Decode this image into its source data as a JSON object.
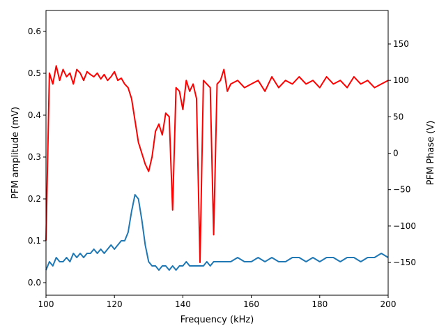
{
  "chart_data": {
    "type": "line",
    "xlabel": "Frequency (kHz)",
    "ylabel": "PFM amplitude (mV)",
    "y2label": "PFM Phase (V)",
    "xlim": [
      100,
      200
    ],
    "ylim": [
      -0.03,
      0.65
    ],
    "y2lim": [
      -195,
      196
    ],
    "grid": false,
    "xticks": [
      100,
      120,
      140,
      160,
      180,
      200
    ],
    "yticks": [
      0.0,
      0.1,
      0.2,
      0.3,
      0.4,
      0.5,
      0.6
    ],
    "y2ticks": [
      -150,
      -100,
      -50,
      0,
      50,
      100,
      150
    ],
    "xtick_labels": [
      "100",
      "120",
      "140",
      "160",
      "180",
      "200"
    ],
    "ytick_labels": [
      "0.0",
      "0.1",
      "0.2",
      "0.3",
      "0.4",
      "0.5",
      "0.6"
    ],
    "y2tick_labels": [
      "−150",
      "−100",
      "−50",
      "0",
      "50",
      "100",
      "150"
    ],
    "series": [
      {
        "axis": "left",
        "color": "#1f77b4",
        "x": [
          100,
          101,
          102,
          103,
          104,
          105,
          106,
          107,
          108,
          109,
          110,
          111,
          112,
          113,
          114,
          115,
          116,
          117,
          118,
          119,
          120,
          121,
          122,
          123,
          124,
          125,
          126,
          127,
          128,
          129,
          130,
          131,
          132,
          133,
          134,
          135,
          136,
          137,
          138,
          139,
          140,
          141,
          142,
          143,
          144,
          145,
          146,
          147,
          148,
          149,
          150,
          152,
          154,
          156,
          158,
          160,
          162,
          164,
          166,
          168,
          170,
          172,
          174,
          176,
          178,
          180,
          182,
          184,
          186,
          188,
          190,
          192,
          194,
          196,
          198,
          200
        ],
        "y": [
          0.03,
          0.05,
          0.04,
          0.06,
          0.05,
          0.05,
          0.06,
          0.05,
          0.07,
          0.06,
          0.07,
          0.06,
          0.07,
          0.07,
          0.08,
          0.07,
          0.08,
          0.07,
          0.08,
          0.09,
          0.08,
          0.09,
          0.1,
          0.1,
          0.12,
          0.17,
          0.21,
          0.2,
          0.15,
          0.09,
          0.05,
          0.04,
          0.04,
          0.03,
          0.04,
          0.04,
          0.03,
          0.04,
          0.03,
          0.04,
          0.04,
          0.05,
          0.04,
          0.04,
          0.04,
          0.04,
          0.04,
          0.05,
          0.04,
          0.05,
          0.05,
          0.05,
          0.05,
          0.06,
          0.05,
          0.05,
          0.06,
          0.05,
          0.06,
          0.05,
          0.05,
          0.06,
          0.06,
          0.05,
          0.06,
          0.05,
          0.06,
          0.06,
          0.05,
          0.06,
          0.06,
          0.05,
          0.06,
          0.06,
          0.07,
          0.06
        ]
      },
      {
        "axis": "right",
        "color": "#ff0000",
        "x": [
          100,
          101,
          102,
          103,
          104,
          105,
          106,
          107,
          108,
          109,
          110,
          111,
          112,
          113,
          114,
          115,
          116,
          117,
          118,
          119,
          120,
          121,
          122,
          123,
          124,
          125,
          126,
          127,
          128,
          129,
          130,
          131,
          132,
          133,
          134,
          135,
          136,
          137,
          138,
          139,
          140,
          141,
          142,
          143,
          144,
          145,
          146,
          147,
          148,
          149,
          150,
          151,
          152,
          153,
          154,
          156,
          158,
          160,
          162,
          164,
          166,
          168,
          170,
          172,
          174,
          176,
          178,
          180,
          182,
          184,
          186,
          188,
          190,
          192,
          194,
          196,
          198,
          200
        ],
        "y": [
          -120,
          110,
          95,
          120,
          100,
          115,
          105,
          110,
          95,
          115,
          110,
          100,
          112,
          108,
          105,
          110,
          102,
          108,
          100,
          105,
          112,
          100,
          103,
          95,
          90,
          75,
          45,
          15,
          0,
          -15,
          -25,
          -5,
          30,
          40,
          25,
          55,
          50,
          -78,
          90,
          85,
          60,
          100,
          85,
          95,
          75,
          -150,
          100,
          95,
          90,
          -112,
          95,
          100,
          115,
          85,
          95,
          100,
          90,
          95,
          100,
          85,
          105,
          90,
          100,
          95,
          105,
          95,
          100,
          90,
          105,
          95,
          100,
          90,
          105,
          95,
          100,
          90,
          95,
          100
        ]
      }
    ]
  }
}
